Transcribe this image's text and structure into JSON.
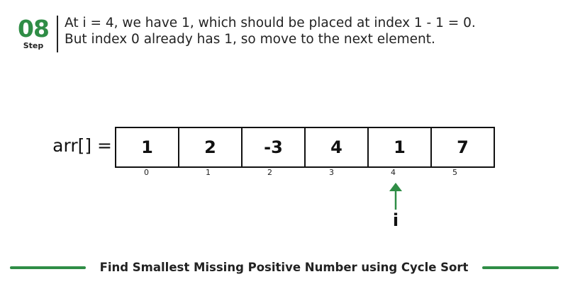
{
  "step": {
    "number": "08",
    "label": "Step"
  },
  "description": {
    "line1": "At i = 4, we have 1, which should be placed at index 1 - 1 = 0.",
    "line2": "But index 0 already has 1, so move to the next element."
  },
  "array": {
    "label": "arr[] =",
    "values": [
      "1",
      "2",
      "-3",
      "4",
      "1",
      "7"
    ],
    "indices": [
      "0",
      "1",
      "2",
      "3",
      "4",
      "5"
    ]
  },
  "pointer": {
    "label": "i",
    "index": 4,
    "color": "#2f8d46"
  },
  "footer": {
    "title": "Find Smallest Missing Positive Number using Cycle Sort"
  },
  "colors": {
    "accent": "#2f8d46",
    "text": "#222222"
  }
}
